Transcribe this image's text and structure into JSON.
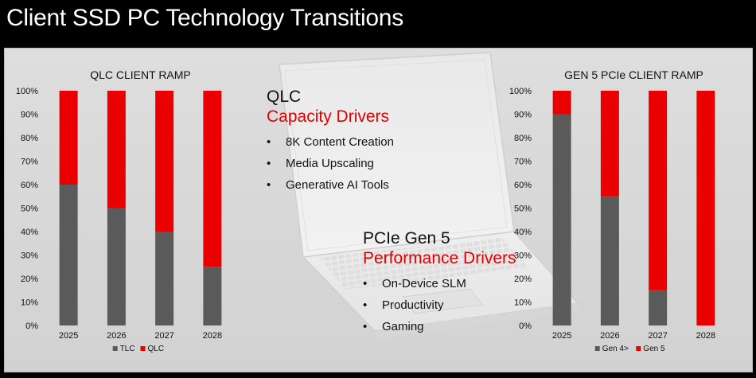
{
  "page": {
    "title": "Client SSD PC Technology Transitions"
  },
  "colors": {
    "gray": "#5a5a5a",
    "red": "#ea0000"
  },
  "chart_data": [
    {
      "type": "bar",
      "stacked": true,
      "title": "QLC CLIENT RAMP",
      "categories": [
        "2025",
        "2026",
        "2027",
        "2028"
      ],
      "series": [
        {
          "name": "TLC",
          "color": "#5a5a5a",
          "values": [
            60,
            50,
            40,
            25
          ]
        },
        {
          "name": "QLC",
          "color": "#ea0000",
          "values": [
            40,
            50,
            60,
            75
          ]
        }
      ],
      "ylim": [
        0,
        100
      ],
      "yticks": [
        "0%",
        "10%",
        "20%",
        "30%",
        "40%",
        "50%",
        "60%",
        "70%",
        "80%",
        "90%",
        "100%"
      ],
      "legend": "bottom"
    },
    {
      "type": "bar",
      "stacked": true,
      "title": "GEN 5 PCIe CLIENT RAMP",
      "categories": [
        "2025",
        "2026",
        "2027",
        "2028"
      ],
      "series": [
        {
          "name": "Gen 4>",
          "color": "#5a5a5a",
          "values": [
            90,
            55,
            15,
            0
          ]
        },
        {
          "name": "Gen 5",
          "color": "#ea0000",
          "values": [
            10,
            45,
            85,
            100
          ]
        }
      ],
      "ylim": [
        0,
        100
      ],
      "yticks": [
        "0%",
        "10%",
        "20%",
        "30%",
        "40%",
        "50%",
        "60%",
        "70%",
        "80%",
        "90%",
        "100%"
      ],
      "legend": "bottom"
    }
  ],
  "qlc_block": {
    "heading": "QLC",
    "subheading": "Capacity Drivers",
    "bullets": [
      "8K Content Creation",
      "Media Upscaling",
      "Generative AI Tools"
    ]
  },
  "pcie_block": {
    "heading": "PCIe Gen 5",
    "subheading": "Performance Drivers",
    "bullets": [
      "On-Device SLM",
      "Productivity",
      "Gaming"
    ]
  },
  "bullet_glyph": "•"
}
